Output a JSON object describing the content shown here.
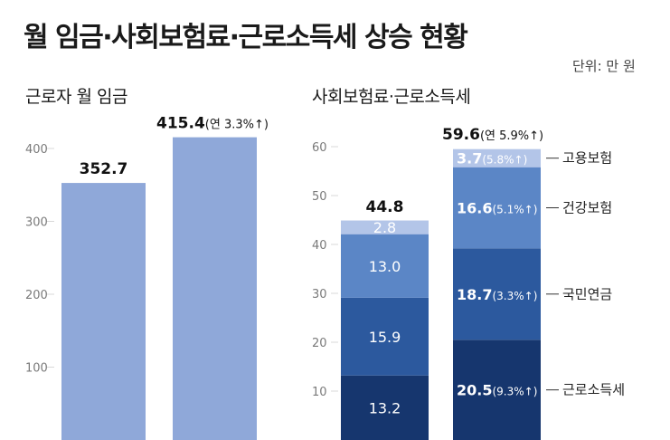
{
  "title": "월 임금·사회보험료·근로소득세 상승 현황",
  "unit": "단위: 만 원",
  "colors": {
    "wage_bar": "#8fa8d9",
    "income_tax": "#16366e",
    "national_pension": "#2c599e",
    "health_insurance": "#5b86c6",
    "employment_insurance": "#b3c5e8",
    "axis_text": "#7a7a7a",
    "grid": "#d8d8d8"
  },
  "chart_data": [
    {
      "type": "bar",
      "subtitle": "근로자 월 임금",
      "yticks": [
        "100",
        "200",
        "300",
        "400"
      ],
      "ylim": [
        0,
        480
      ],
      "grid": false,
      "values": [
        352.7,
        415.4
      ],
      "value_labels": [
        "352.7",
        "415.4"
      ],
      "notes": [
        "",
        "(연 3.3%↑)"
      ]
    },
    {
      "type": "bar",
      "stacked": true,
      "subtitle": "사회보험료·근로소득세",
      "yticks": [
        "10",
        "20",
        "30",
        "40",
        "50",
        "60"
      ],
      "ylim": [
        0,
        67
      ],
      "grid": false,
      "totals": [
        44.8,
        59.6
      ],
      "total_labels": [
        "44.8",
        "59.6"
      ],
      "total_notes": [
        "",
        "(연 5.9%↑)"
      ],
      "series": [
        {
          "name": "근로소득세",
          "values": [
            13.2,
            20.5
          ],
          "labels": [
            "13.2",
            "20.5"
          ],
          "notes": [
            "",
            "(9.3%↑)"
          ]
        },
        {
          "name": "국민연금",
          "values": [
            15.9,
            18.7
          ],
          "labels": [
            "15.9",
            "18.7"
          ],
          "notes": [
            "",
            "(3.3%↑)"
          ]
        },
        {
          "name": "건강보험",
          "values": [
            13.0,
            16.6
          ],
          "labels": [
            "13.0",
            "16.6"
          ],
          "notes": [
            "",
            "(5.1%↑)"
          ]
        },
        {
          "name": "고용보험",
          "values": [
            2.8,
            3.7
          ],
          "labels": [
            "2.8",
            "3.7"
          ],
          "notes": [
            "",
            "(5.8%↑)"
          ]
        }
      ]
    }
  ]
}
